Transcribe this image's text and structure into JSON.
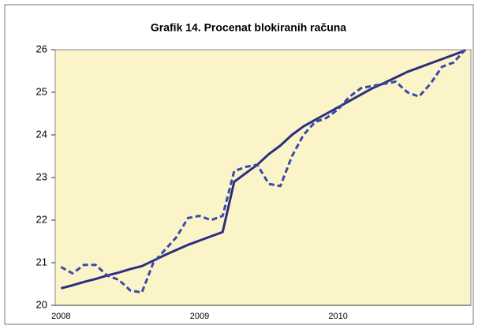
{
  "chart_data": {
    "type": "line",
    "title": "Grafik 14. Procenat blokiranih računa",
    "categories": [
      "2008",
      null,
      null,
      null,
      null,
      null,
      null,
      null,
      null,
      null,
      null,
      null,
      "2009",
      null,
      null,
      null,
      null,
      null,
      null,
      null,
      null,
      null,
      null,
      null,
      "2010",
      null,
      null,
      null,
      null,
      null,
      null,
      null,
      null,
      null,
      null,
      null
    ],
    "series": [
      {
        "color": "#2b2f7e",
        "dashed": false,
        "values": [
          20.4,
          20.47,
          20.55,
          20.62,
          20.7,
          20.77,
          20.85,
          20.92,
          21.05,
          21.18,
          21.3,
          21.42,
          21.52,
          21.62,
          21.72,
          22.9,
          23.1,
          23.3,
          23.55,
          23.75,
          24.0,
          24.2,
          24.35,
          24.5,
          24.65,
          24.8,
          24.95,
          25.1,
          25.22,
          25.35,
          25.48,
          25.58,
          25.68,
          25.78,
          25.88,
          25.98
        ]
      },
      {
        "color": "#3a48a8",
        "dashed": true,
        "values": [
          20.9,
          20.75,
          20.95,
          20.95,
          20.7,
          20.6,
          20.35,
          20.3,
          21.0,
          21.3,
          21.6,
          22.05,
          22.1,
          22.0,
          22.1,
          23.15,
          23.25,
          23.3,
          22.85,
          22.8,
          23.5,
          24.0,
          24.3,
          24.4,
          24.6,
          24.9,
          25.1,
          25.15,
          25.2,
          25.25,
          25.0,
          24.9,
          25.2,
          25.6,
          25.7,
          26.0
        ]
      }
    ],
    "ylim": [
      20,
      26
    ],
    "yticks": [
      20,
      21,
      22,
      23,
      24,
      25,
      26
    ],
    "plot_background": "#fbf4c8"
  }
}
